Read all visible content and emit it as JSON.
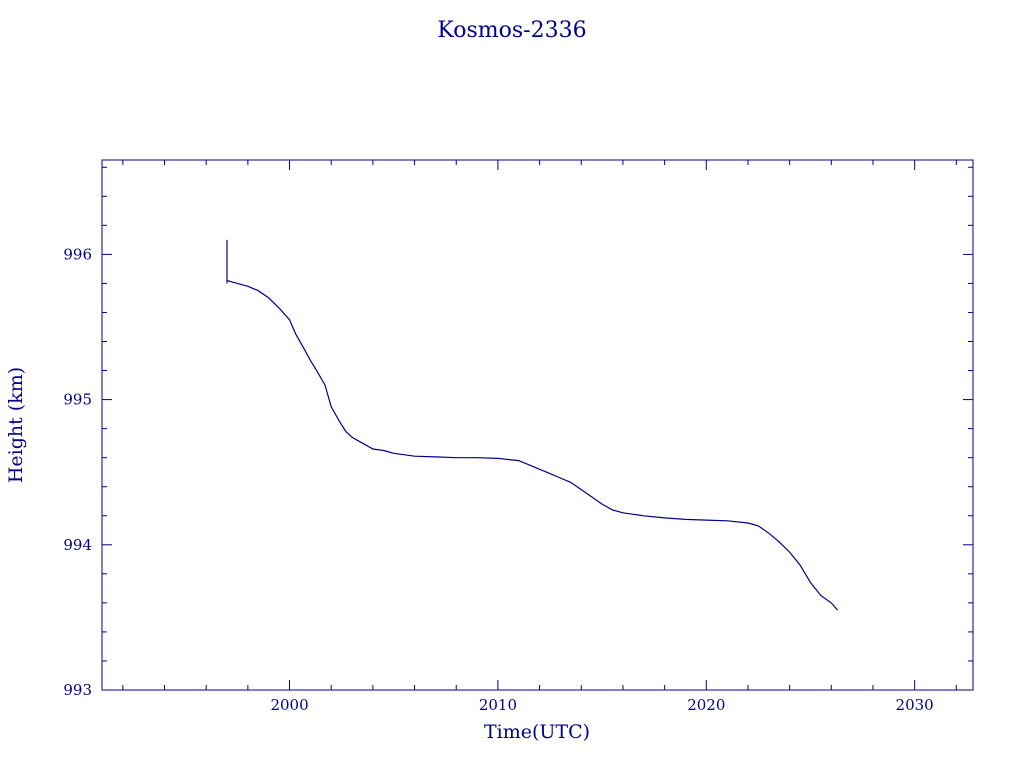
{
  "chart_data": {
    "type": "line",
    "title": "Kosmos-2336",
    "xlabel": "Time(UTC)",
    "ylabel": "Height (km)",
    "xlim": [
      1991.0,
      2032.8
    ],
    "ylim": [
      993.0,
      996.65
    ],
    "x_ticks": [
      2000,
      2010,
      2020,
      2030
    ],
    "y_ticks": [
      993,
      994,
      995,
      996
    ],
    "grid": false,
    "color": "#00008b",
    "series": [
      {
        "x": [
          1997.0,
          1997.0,
          1997.0,
          1997.5,
          1998.0,
          1998.5,
          1999.0,
          1999.5,
          2000.0,
          2000.3,
          2000.7,
          2001.0,
          2001.3,
          2001.7,
          2002.0,
          2002.4,
          2002.7,
          2003.0,
          2003.5,
          2004.0,
          2004.5,
          2005.0,
          2006.0,
          2007.0,
          2008.0,
          2009.0,
          2010.0,
          2011.0,
          2011.5,
          2012.0,
          2012.5,
          2013.0,
          2013.5,
          2014.0,
          2014.5,
          2015.0,
          2015.5,
          2016.0,
          2017.0,
          2018.0,
          2019.0,
          2020.0,
          2021.0,
          2022.0,
          2022.5,
          2023.0,
          2023.5,
          2024.0,
          2024.5,
          2025.0,
          2025.5,
          2026.0,
          2026.3
        ],
        "y": [
          996.1,
          995.8,
          995.82,
          995.8,
          995.78,
          995.75,
          995.7,
          995.63,
          995.55,
          995.45,
          995.35,
          995.27,
          995.2,
          995.1,
          994.95,
          994.85,
          994.78,
          994.74,
          994.7,
          994.66,
          994.65,
          994.63,
          994.61,
          994.605,
          994.6,
          994.6,
          994.595,
          994.58,
          994.55,
          994.52,
          994.49,
          994.46,
          994.43,
          994.38,
          994.33,
          994.28,
          994.24,
          994.22,
          994.2,
          994.185,
          994.175,
          994.17,
          994.165,
          994.15,
          994.13,
          994.08,
          994.02,
          993.95,
          993.86,
          993.74,
          993.65,
          993.6,
          993.55
        ]
      }
    ]
  }
}
